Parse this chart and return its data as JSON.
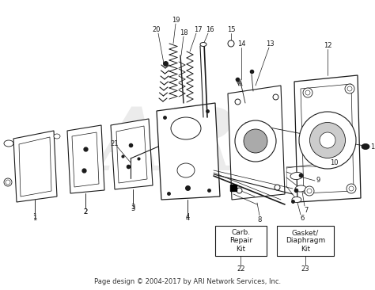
{
  "bg_color": "#ffffff",
  "footer_text": "Page design © 2004-2017 by ARI Network Services, Inc.",
  "footer_fontsize": 6.0,
  "watermark_text": "ARI",
  "box22_text": "Carb.\nRepair\nKit",
  "box23_text": "Gasket/\nDiaphragm\nKit",
  "label_fs": 6.0,
  "line_color": "#1a1a1a",
  "part_color": "#1a1a1a"
}
